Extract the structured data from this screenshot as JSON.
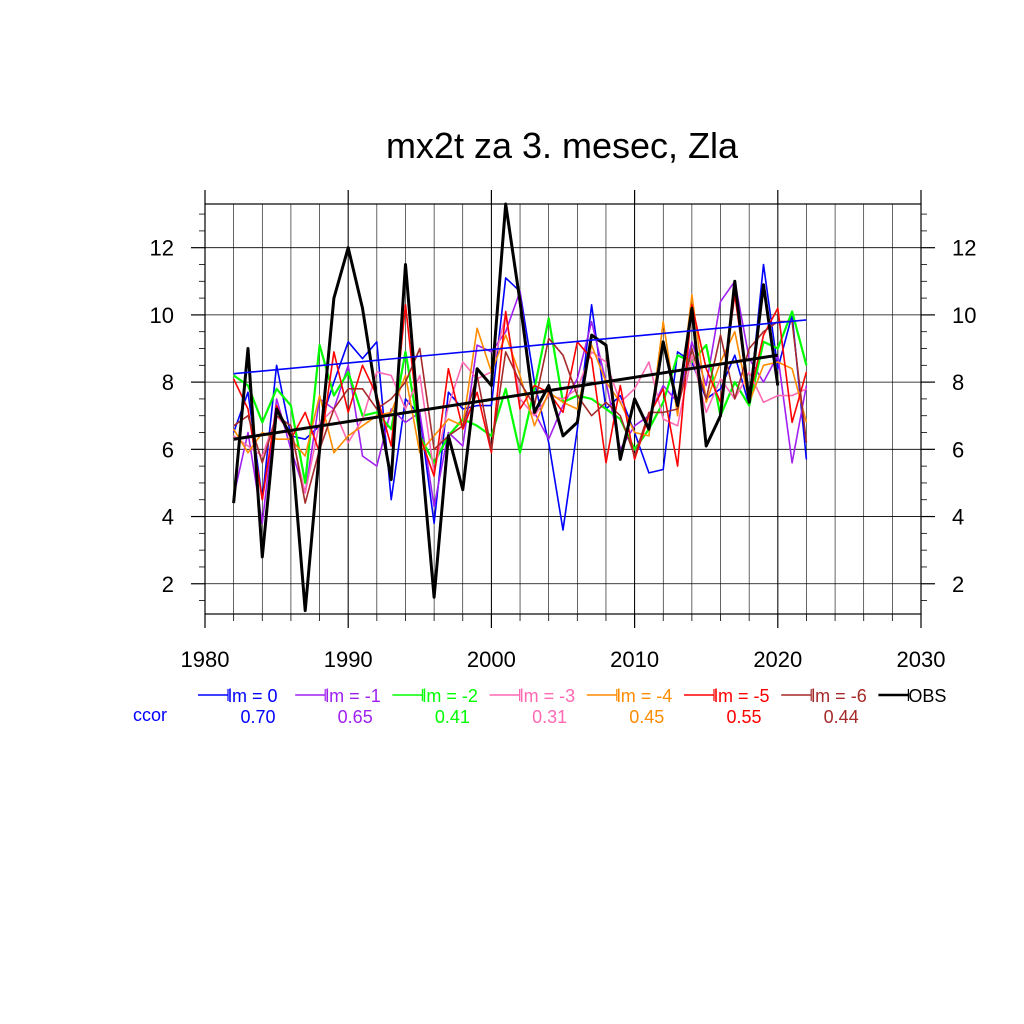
{
  "chart_data": {
    "type": "line",
    "title": "mx2t za 3. mesec, Zla",
    "xlabel": "",
    "ylabel": "",
    "xlim": [
      1980,
      2030
    ],
    "ylim": [
      1.1,
      13.3
    ],
    "x_ticks": [
      1980,
      1990,
      2000,
      2010,
      2020,
      2030
    ],
    "y_ticks": [
      2,
      4,
      6,
      8,
      10,
      12
    ],
    "grid": true,
    "x": [
      1982,
      1983,
      1984,
      1985,
      1986,
      1987,
      1988,
      1989,
      1990,
      1991,
      1992,
      1993,
      1994,
      1995,
      1996,
      1997,
      1998,
      1999,
      2000,
      2001,
      2002,
      2003,
      2004,
      2005,
      2006,
      2007,
      2008,
      2009,
      2010,
      2011,
      2012,
      2013,
      2014,
      2015,
      2016,
      2017,
      2018,
      2019,
      2020,
      2021,
      2022
    ],
    "series": [
      {
        "name": "lm = 0",
        "color": "#0000ff",
        "width": 1.6,
        "values": [
          6.5,
          7.7,
          4.5,
          8.5,
          6.4,
          6.3,
          6.7,
          8.0,
          9.2,
          8.7,
          9.2,
          4.5,
          7.5,
          7.0,
          3.8,
          7.7,
          7.2,
          7.3,
          7.3,
          11.1,
          10.7,
          8.0,
          6.2,
          3.6,
          6.6,
          10.3,
          7.2,
          7.6,
          6.5,
          5.3,
          5.4,
          8.9,
          8.6,
          7.5,
          7.8,
          8.8,
          7.3,
          11.5,
          8.4,
          10.0,
          5.7
        ]
      },
      {
        "name": "lm = -1",
        "color": "#a020f0",
        "width": 1.6,
        "values": [
          4.6,
          6.5,
          3.8,
          7.5,
          6.0,
          4.7,
          7.5,
          7.2,
          8.5,
          5.8,
          5.5,
          7.2,
          6.8,
          7.1,
          4.3,
          6.5,
          6.1,
          9.1,
          8.9,
          9.5,
          10.7,
          7.1,
          6.3,
          7.3,
          8.1,
          9.8,
          8.0,
          6.0,
          6.7,
          7.0,
          7.9,
          7.4,
          9.2,
          7.9,
          10.4,
          11.0,
          8.7,
          8.0,
          8.8,
          5.6,
          7.9
        ]
      },
      {
        "name": "lm = -2",
        "color": "#00ff00",
        "width": 2.2,
        "values": [
          8.2,
          7.9,
          6.8,
          7.8,
          7.3,
          5.0,
          9.1,
          7.6,
          8.3,
          7.0,
          7.1,
          6.6,
          8.9,
          6.4,
          5.6,
          6.4,
          6.9,
          6.7,
          6.4,
          7.8,
          5.9,
          7.8,
          9.9,
          7.4,
          7.6,
          7.5,
          7.2,
          6.9,
          6.0,
          6.6,
          7.4,
          8.8,
          8.6,
          9.1,
          7.0,
          8.0,
          7.3,
          9.2,
          9.0,
          10.1,
          8.5
        ]
      },
      {
        "name": "lm = -3",
        "color": "#ff69b4",
        "width": 1.6,
        "values": [
          6.4,
          6.1,
          5.8,
          7.0,
          6.5,
          4.7,
          6.8,
          7.2,
          6.2,
          6.9,
          8.3,
          8.2,
          7.2,
          8.2,
          5.3,
          7.3,
          8.6,
          8.1,
          8.3,
          10.0,
          7.5,
          7.0,
          7.6,
          7.5,
          7.8,
          8.9,
          8.6,
          7.4,
          7.8,
          8.6,
          6.9,
          6.7,
          8.8,
          7.1,
          8.1,
          7.5,
          8.3,
          7.4,
          7.6,
          7.6,
          7.8
        ]
      },
      {
        "name": "lm = -4",
        "color": "#ff8c00",
        "width": 1.6,
        "values": [
          6.6,
          5.9,
          6.5,
          6.3,
          6.3,
          5.8,
          7.6,
          5.9,
          6.4,
          6.7,
          7.0,
          7.1,
          8.2,
          5.9,
          6.4,
          6.9,
          6.7,
          9.6,
          8.3,
          9.4,
          8.2,
          6.7,
          7.7,
          7.4,
          7.2,
          9.1,
          8.0,
          7.4,
          6.5,
          6.4,
          9.8,
          7.0,
          10.6,
          7.4,
          8.6,
          9.5,
          7.4,
          8.5,
          8.6,
          8.4,
          6.8
        ]
      },
      {
        "name": "lm = -5",
        "color": "#ff0000",
        "width": 1.6,
        "values": [
          8.1,
          7.2,
          4.5,
          7.3,
          6.3,
          7.1,
          5.9,
          8.9,
          7.1,
          8.5,
          7.6,
          6.1,
          10.3,
          6.4,
          5.2,
          8.4,
          6.6,
          7.7,
          5.9,
          10.1,
          7.2,
          7.9,
          7.7,
          7.1,
          9.2,
          8.7,
          5.6,
          7.9,
          5.7,
          7.0,
          7.8,
          5.5,
          10.3,
          8.4,
          7.4,
          10.6,
          7.5,
          9.4,
          10.2,
          6.8,
          8.3
        ]
      },
      {
        "name": "lm = -6",
        "color": "#a52a2a",
        "width": 1.6,
        "values": [
          6.7,
          7.0,
          5.6,
          7.0,
          6.7,
          4.4,
          6.0,
          7.2,
          7.8,
          7.8,
          7.2,
          7.5,
          8.0,
          9.0,
          6.0,
          6.4,
          6.7,
          8.2,
          6.0,
          8.9,
          8.0,
          7.3,
          9.3,
          8.8,
          7.6,
          7.0,
          7.4,
          7.0,
          5.8,
          7.1,
          7.1,
          7.2,
          9.0,
          7.5,
          9.4,
          7.5,
          9.0,
          9.5,
          9.8,
          9.8,
          6.2
        ]
      },
      {
        "name": "OBS",
        "color": "#000000",
        "width": 3,
        "values": [
          4.4,
          9.0,
          2.8,
          7.2,
          6.4,
          1.2,
          6.0,
          10.5,
          12.0,
          10.2,
          7.5,
          5.1,
          11.5,
          6.4,
          1.6,
          6.4,
          4.8,
          8.4,
          7.9,
          13.3,
          10.4,
          7.1,
          7.9,
          6.4,
          6.8,
          9.4,
          9.1,
          5.7,
          7.5,
          6.6,
          9.2,
          7.3,
          10.2,
          6.1,
          7.0,
          11.0,
          7.4,
          10.9,
          7.9,
          null,
          null
        ]
      }
    ],
    "trends": [
      {
        "color": "#0000ff",
        "width": 1.6,
        "x": [
          1982,
          2022
        ],
        "y": [
          8.25,
          9.85
        ]
      },
      {
        "color": "#000000",
        "width": 3,
        "x": [
          1982,
          2020
        ],
        "y": [
          6.3,
          8.8
        ]
      }
    ],
    "legend": {
      "placement": "bottom",
      "ccor_label": "ccor",
      "ccor_label_color": "#0000ff",
      "entries": [
        {
          "label": "lm = 0",
          "color": "#0000ff",
          "ccor": "0.70"
        },
        {
          "label": "lm = -1",
          "color": "#a020f0",
          "ccor": "0.65"
        },
        {
          "label": "lm = -2",
          "color": "#00ff00",
          "ccor": "0.41"
        },
        {
          "label": "lm = -3",
          "color": "#ff69b4",
          "ccor": "0.31"
        },
        {
          "label": "lm = -4",
          "color": "#ff8c00",
          "ccor": "0.45"
        },
        {
          "label": "lm = -5",
          "color": "#ff0000",
          "ccor": "0.55"
        },
        {
          "label": "lm = -6",
          "color": "#a52a2a",
          "ccor": "0.44"
        },
        {
          "label": "OBS",
          "color": "#000000",
          "ccor": ""
        }
      ]
    }
  }
}
